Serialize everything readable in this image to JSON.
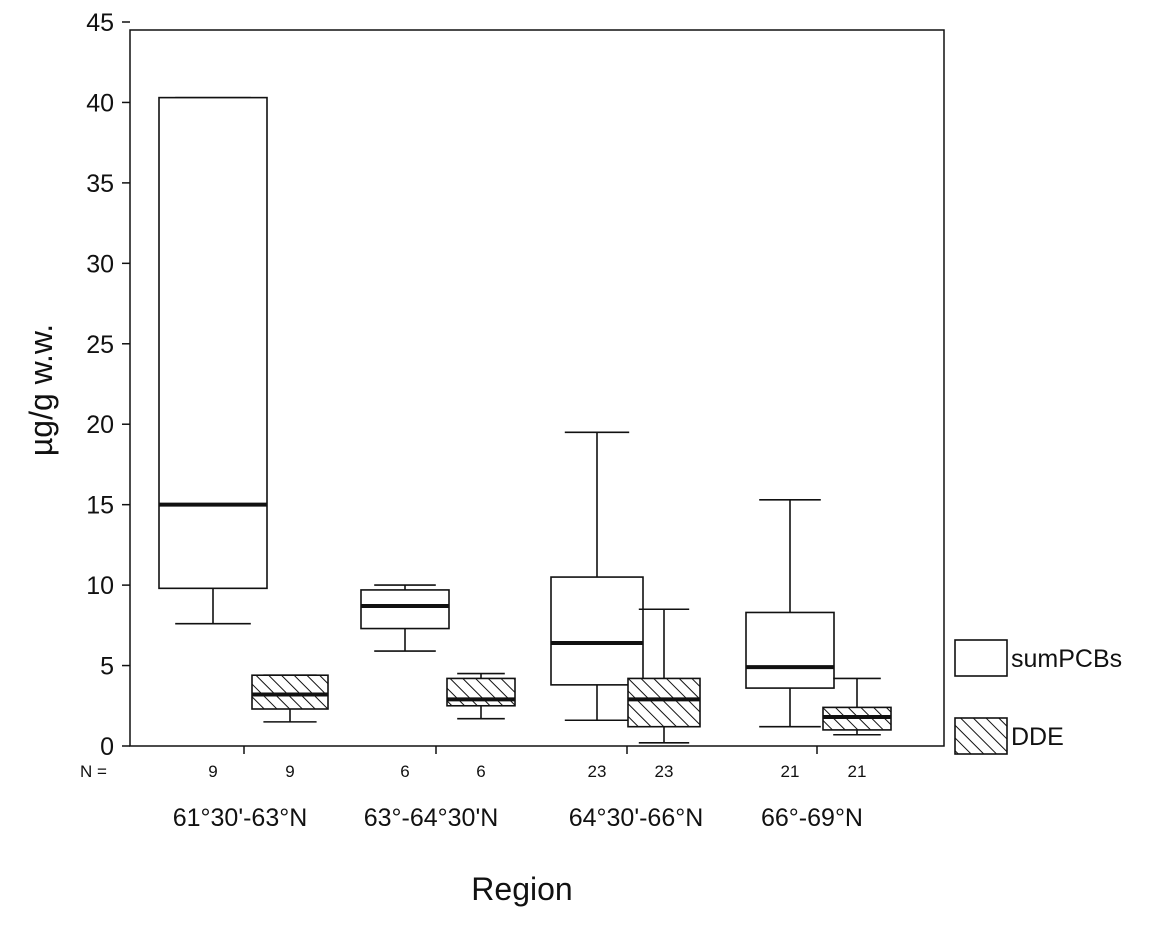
{
  "chart_data": {
    "type": "boxplot",
    "title": "",
    "xlabel": "Region",
    "ylabel": "µg/g w.w.",
    "ylim": [
      0,
      45
    ],
    "yticks": [
      0,
      5,
      10,
      15,
      20,
      25,
      30,
      35,
      40,
      45
    ],
    "grid": false,
    "legend_position": "right",
    "n_prefix": "N =",
    "categories": [
      "61°30'-63°N",
      "63°-64°30'N",
      "64°30'-66°N",
      "66°-69°N"
    ],
    "series": [
      {
        "name": "sumPCBs",
        "pattern": "none",
        "boxes": [
          {
            "n": "9",
            "min": 7.6,
            "q1": 9.8,
            "median": 15.0,
            "q3": 40.3,
            "max": 40.3
          },
          {
            "n": "6",
            "min": 5.9,
            "q1": 7.3,
            "median": 8.7,
            "q3": 9.7,
            "max": 10.0
          },
          {
            "n": "23",
            "min": 1.6,
            "q1": 3.8,
            "median": 6.4,
            "q3": 10.5,
            "max": 19.5
          },
          {
            "n": "21",
            "min": 1.2,
            "q1": 3.6,
            "median": 4.9,
            "q3": 8.3,
            "max": 15.3
          }
        ]
      },
      {
        "name": "DDE",
        "pattern": "hatched",
        "boxes": [
          {
            "n": "9",
            "min": 1.5,
            "q1": 2.3,
            "median": 3.2,
            "q3": 4.4,
            "max": 4.4
          },
          {
            "n": "6",
            "min": 1.7,
            "q1": 2.5,
            "median": 2.9,
            "q3": 4.2,
            "max": 4.5
          },
          {
            "n": "23",
            "min": 0.2,
            "q1": 1.2,
            "median": 2.9,
            "q3": 4.2,
            "max": 8.5
          },
          {
            "n": "21",
            "min": 0.7,
            "q1": 1.0,
            "median": 1.8,
            "q3": 2.4,
            "max": 4.2
          }
        ]
      }
    ]
  }
}
